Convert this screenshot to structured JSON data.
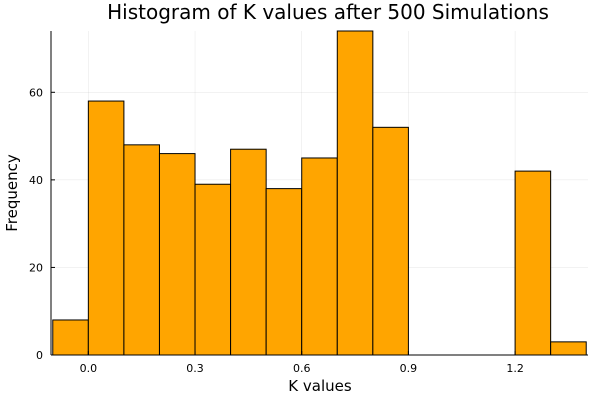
{
  "chart_data": {
    "type": "bar",
    "title": "Histogram of K values after 500 Simulations",
    "xlabel": "K values",
    "ylabel": "Frequency",
    "bin_width": 0.1,
    "bins": [
      {
        "start": -0.1,
        "end": 0.0,
        "count": 8
      },
      {
        "start": 0.0,
        "end": 0.1,
        "count": 58
      },
      {
        "start": 0.1,
        "end": 0.2,
        "count": 48
      },
      {
        "start": 0.2,
        "end": 0.3,
        "count": 46
      },
      {
        "start": 0.3,
        "end": 0.4,
        "count": 39
      },
      {
        "start": 0.4,
        "end": 0.5,
        "count": 47
      },
      {
        "start": 0.5,
        "end": 0.6,
        "count": 38
      },
      {
        "start": 0.6,
        "end": 0.7,
        "count": 45
      },
      {
        "start": 0.7,
        "end": 0.8,
        "count": 74
      },
      {
        "start": 0.8,
        "end": 0.9,
        "count": 52
      },
      {
        "start": 0.9,
        "end": 1.0,
        "count": 0
      },
      {
        "start": 1.0,
        "end": 1.1,
        "count": 0
      },
      {
        "start": 1.1,
        "end": 1.2,
        "count": 0
      },
      {
        "start": 1.2,
        "end": 1.3,
        "count": 42
      },
      {
        "start": 1.3,
        "end": 1.4,
        "count": 3
      }
    ],
    "xlim": [
      -0.105,
      1.405
    ],
    "ylim": [
      0,
      74
    ],
    "xticks": [
      0.0,
      0.3,
      0.6,
      0.9,
      1.2
    ],
    "xtick_labels": [
      "0.0",
      "0.3",
      "0.6",
      "0.9",
      "1.2"
    ],
    "yticks": [
      0,
      20,
      40,
      60
    ],
    "ytick_labels": [
      "0",
      "20",
      "40",
      "60"
    ],
    "grid": true,
    "legend": "none",
    "bar_color": "#FFA500",
    "edge_color": "#000000"
  }
}
